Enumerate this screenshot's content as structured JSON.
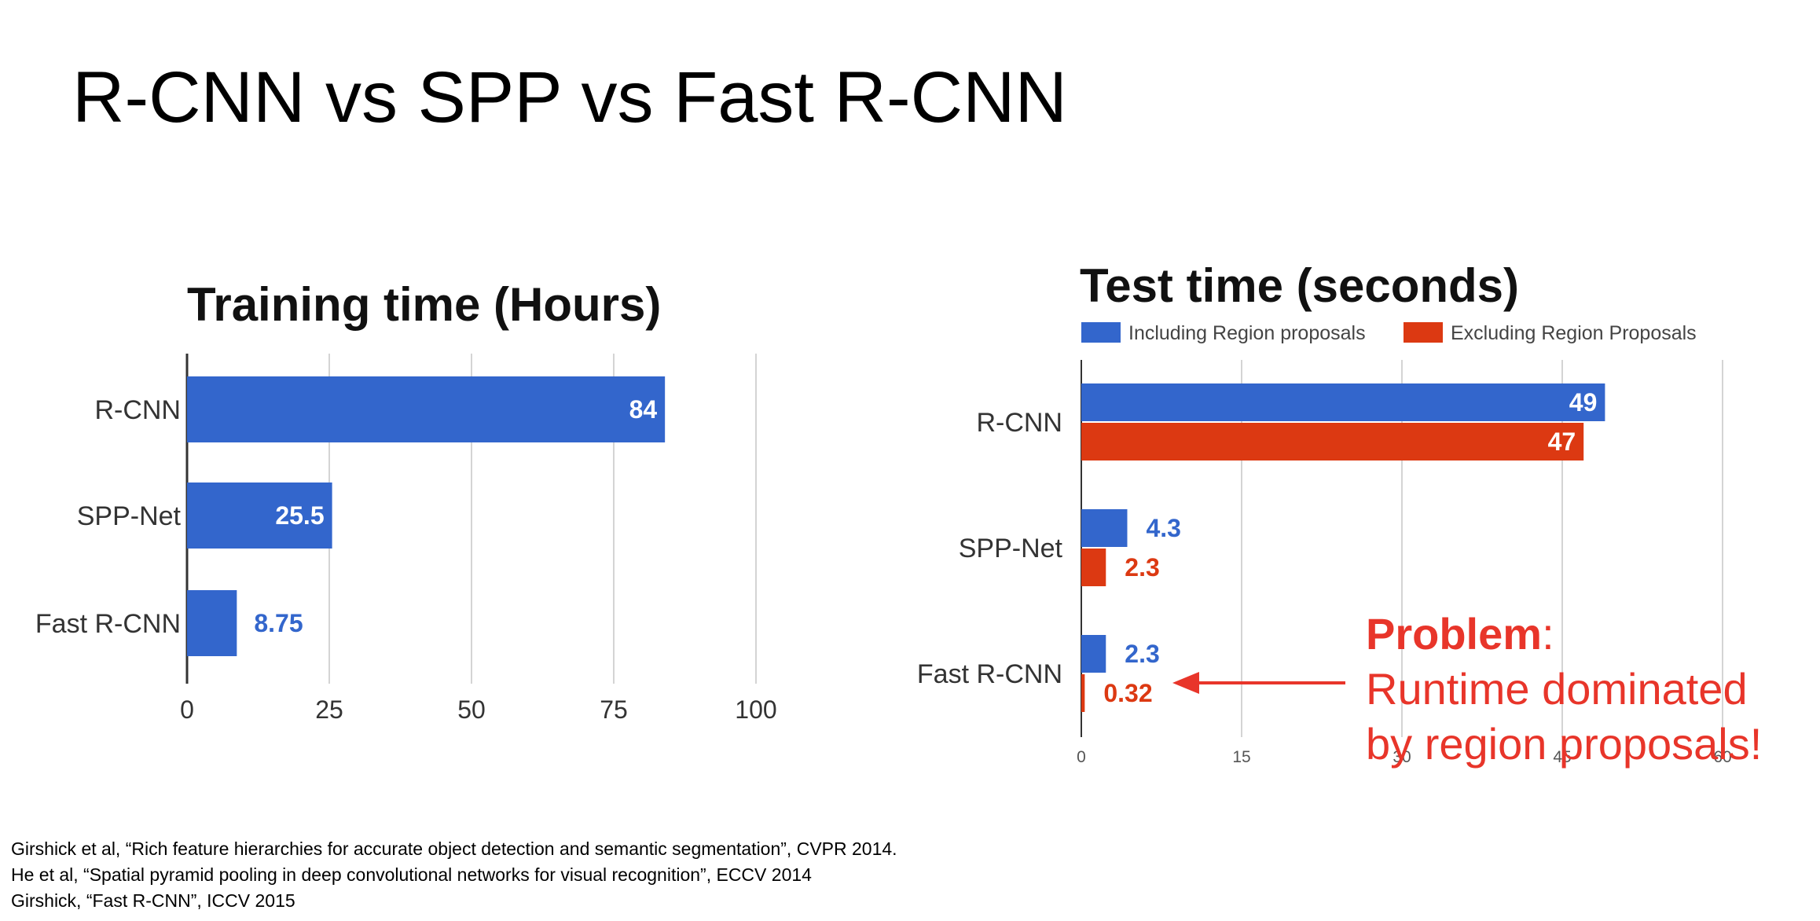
{
  "slide": {
    "title": "R-CNN vs SPP vs Fast R-CNN",
    "references": [
      "Girshick et al, “Rich feature hierarchies for accurate object detection and semantic segmentation”, CVPR 2014.",
      "He et al, “Spatial pyramid pooling in deep convolutional networks for visual recognition”, ECCV 2014",
      "Girshick, “Fast R-CNN”, ICCV 2015"
    ],
    "annotation": {
      "heading": "Problem",
      "colon": ":",
      "line1": "Runtime dominated",
      "line2": "by region proposals!",
      "color": "#e8352a"
    }
  },
  "colors": {
    "blue": "#3366cc",
    "red": "#dc3912"
  },
  "chart_data": [
    {
      "type": "bar",
      "orientation": "horizontal",
      "title": "Training time (Hours)",
      "categories": [
        "R-CNN",
        "SPP-Net",
        "Fast R-CNN"
      ],
      "series": [
        {
          "values": [
            84,
            25.5,
            8.75
          ],
          "labels": [
            "84",
            "25.5",
            "8.75"
          ],
          "color": "#3366cc"
        }
      ],
      "xlim": [
        0,
        100
      ],
      "xticks": [
        0,
        25,
        50,
        75,
        100
      ],
      "grid": true,
      "legend": "none"
    },
    {
      "type": "bar",
      "orientation": "horizontal",
      "title": "Test time (seconds)",
      "categories": [
        "R-CNN",
        "SPP-Net",
        "Fast R-CNN"
      ],
      "series": [
        {
          "name": "Including Region proposals",
          "values": [
            49,
            4.3,
            2.3
          ],
          "labels": [
            "49",
            "4.3",
            "2.3"
          ],
          "color": "#3366cc"
        },
        {
          "name": "Excluding Region Proposals",
          "values": [
            47,
            2.3,
            0.32
          ],
          "labels": [
            "47",
            "2.3",
            "0.32"
          ],
          "color": "#dc3912"
        }
      ],
      "xlim": [
        0,
        60
      ],
      "xticks": [
        0,
        15,
        30,
        45,
        60
      ],
      "grid": true,
      "legend": "top-left"
    }
  ]
}
